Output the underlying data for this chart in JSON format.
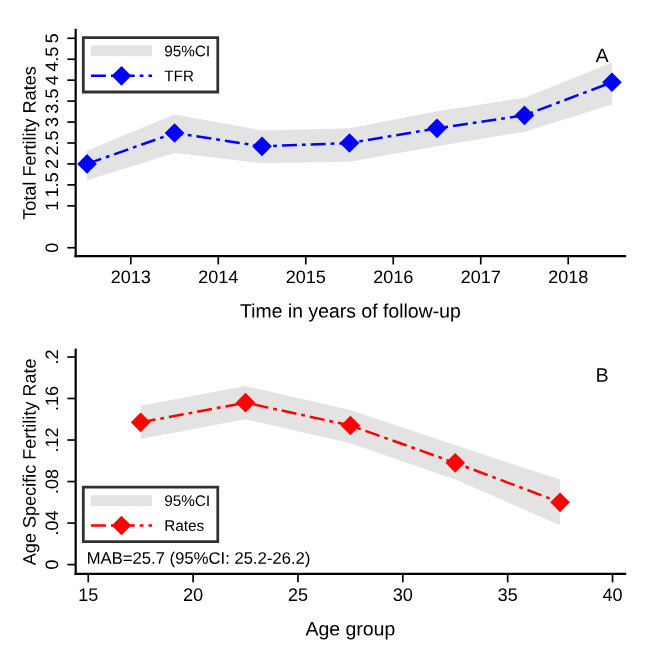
{
  "chart_data": [
    {
      "type": "line",
      "ylabel": "Total Fertility Rates",
      "xlabel": "Time in years of follow-up",
      "annotations": [
        "A",
        "95%CI"
      ],
      "x": [
        2012.5,
        2013.5,
        2014.5,
        2015.5,
        2016.5,
        2017.5,
        2018.5
      ],
      "series": [
        {
          "name": "TFR",
          "color": "#0000ff",
          "values": [
            2.0,
            2.74,
            2.42,
            2.5,
            2.85,
            3.16,
            3.95
          ],
          "lower": [
            1.61,
            2.26,
            2.02,
            2.05,
            2.42,
            2.77,
            3.42
          ],
          "upper": [
            2.32,
            3.18,
            2.8,
            2.85,
            3.26,
            3.58,
            4.42
          ]
        }
      ],
      "xlim": [
        2012.37,
        2018.65
      ],
      "xticks": [
        2013,
        2014,
        2015,
        2016,
        2017,
        2018
      ],
      "ylim": [
        -0.2,
        5.2
      ],
      "yticks": [
        0,
        1,
        1.5,
        2,
        2.5,
        3,
        3.5,
        4,
        4.5,
        5
      ],
      "legend": "top left",
      "marker": "diamond",
      "line_style": "dashed",
      "grid": false
    },
    {
      "type": "line",
      "ylabel": "Age Specific Fertility Rate",
      "xlabel": "Age group",
      "annotations": [
        "B",
        "MAB=25.7 (95%CI: 25.2-26.2)",
        "95%CI"
      ],
      "x": [
        17.5,
        22.5,
        27.5,
        32.5,
        37.5
      ],
      "series": [
        {
          "name": "Rates",
          "color": "#ff0000",
          "values": [
            0.137,
            0.156,
            0.134,
            0.098,
            0.06
          ],
          "lower": [
            0.121,
            0.14,
            0.117,
            0.082,
            0.038
          ],
          "upper": [
            0.153,
            0.172,
            0.149,
            0.115,
            0.082
          ]
        }
      ],
      "xlim": [
        14.4,
        40.6
      ],
      "xticks": [
        15,
        20,
        25,
        30,
        35,
        40
      ],
      "ylim": [
        -0.009,
        0.207
      ],
      "yticks": [
        {
          "value": 0,
          "label": "0"
        },
        {
          "value": 0.04,
          "label": ".04"
        },
        {
          "value": 0.08,
          "label": ".08"
        },
        {
          "value": 0.12,
          "label": ".12"
        },
        {
          "value": 0.16,
          "label": ".16"
        },
        {
          "value": 0.2,
          "label": ".2"
        }
      ],
      "legend": "bottom left",
      "marker": "diamond",
      "line_style": "dashed",
      "grid": false
    }
  ]
}
